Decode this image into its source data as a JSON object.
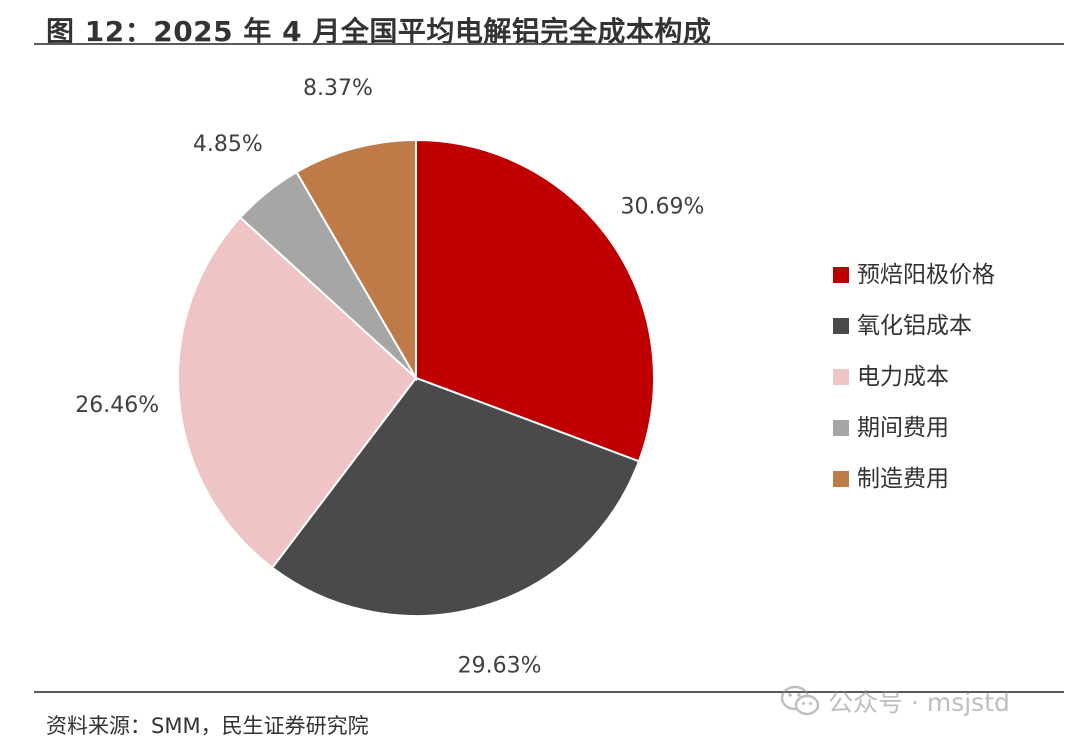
{
  "title": "图 12：2025 年 4 月全国平均电解铝完全成本构成",
  "source": "资料来源：SMM，民生证券研究院",
  "watermark": "公众号 · msjstd",
  "chart_data": {
    "type": "pie",
    "categories": [
      "预焙阳极价格",
      "氧化铝成本",
      "电力成本",
      "期间费用",
      "制造费用"
    ],
    "values": [
      30.69,
      29.63,
      26.46,
      4.85,
      8.37
    ],
    "labels": [
      "30.69%",
      "29.63%",
      "26.46%",
      "4.85%",
      "8.37%"
    ],
    "colors": [
      "#c00000",
      "#4a4a4c",
      "#eec4c4",
      "#a6a6a6",
      "#be7b48"
    ],
    "legend_position": "right",
    "start_angle": "top",
    "direction": "clockwise"
  }
}
